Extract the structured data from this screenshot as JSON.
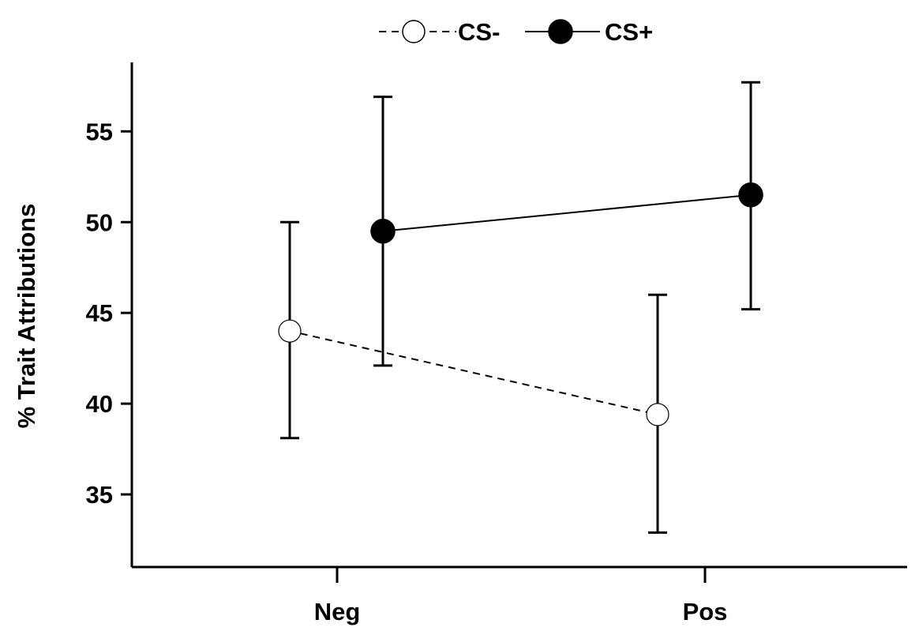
{
  "chart_data": {
    "type": "line",
    "title": "",
    "xlabel": "",
    "ylabel": "% Trait Attributions",
    "categories": [
      "Neg",
      "Pos"
    ],
    "yticks": [
      35,
      40,
      45,
      50,
      55
    ],
    "ylim": [
      31,
      58.8
    ],
    "grid": false,
    "legend_position": "top-center",
    "series": [
      {
        "name": "CS-",
        "values": [
          44.0,
          39.4
        ],
        "error_low": [
          38.1,
          32.9
        ],
        "error_high": [
          50.0,
          46.0
        ],
        "line_style": "dashed",
        "marker": "open-circle",
        "color": "#000000"
      },
      {
        "name": "CS+",
        "values": [
          49.5,
          51.5
        ],
        "error_low": [
          42.1,
          45.2
        ],
        "error_high": [
          56.9,
          57.7
        ],
        "line_style": "solid",
        "marker": "filled-circle",
        "color": "#000000"
      }
    ]
  }
}
